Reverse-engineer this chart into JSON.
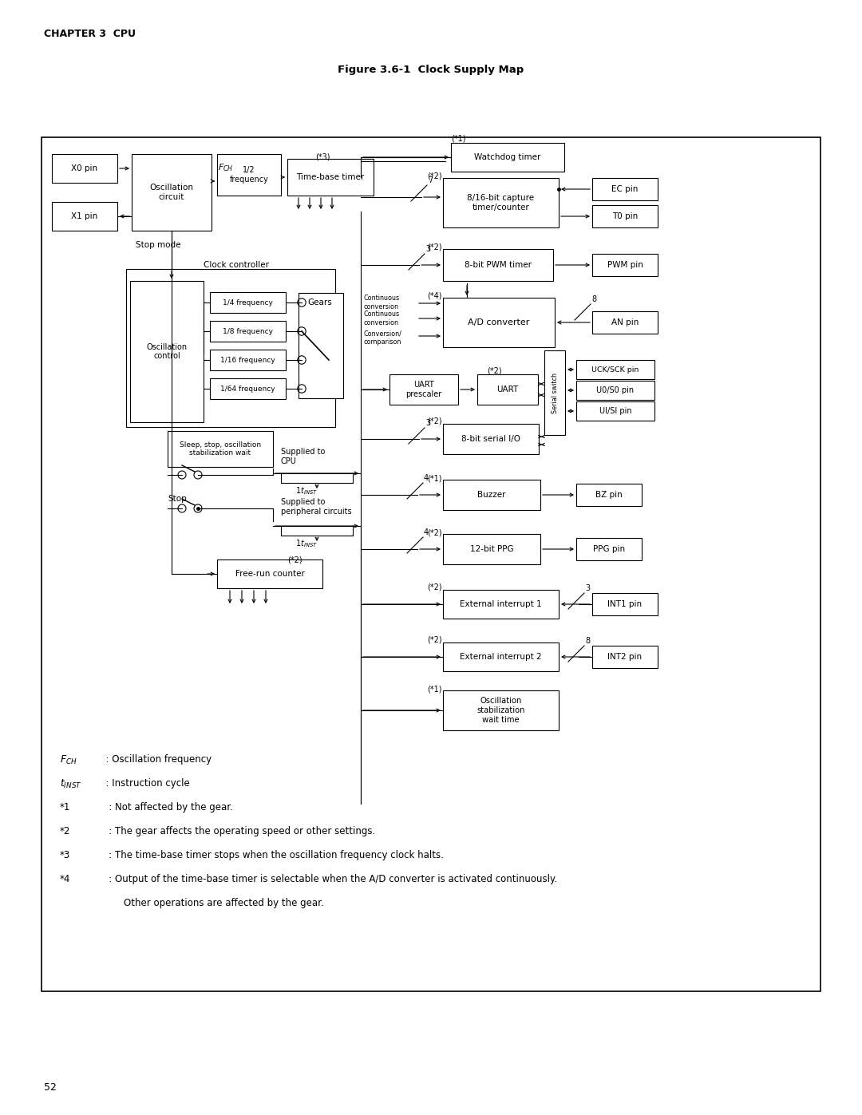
{
  "title": "Figure 3.6-1  Clock Supply Map",
  "chapter": "CHAPTER 3  CPU",
  "page": "52",
  "bg_color": "#ffffff",
  "lw": 0.8,
  "border": [
    0.52,
    1.55,
    9.76,
    10.7
  ],
  "freq_labels": [
    "1/4 frequency",
    "1/8 frequency",
    "1/16 frequency",
    "1/64 frequency"
  ]
}
